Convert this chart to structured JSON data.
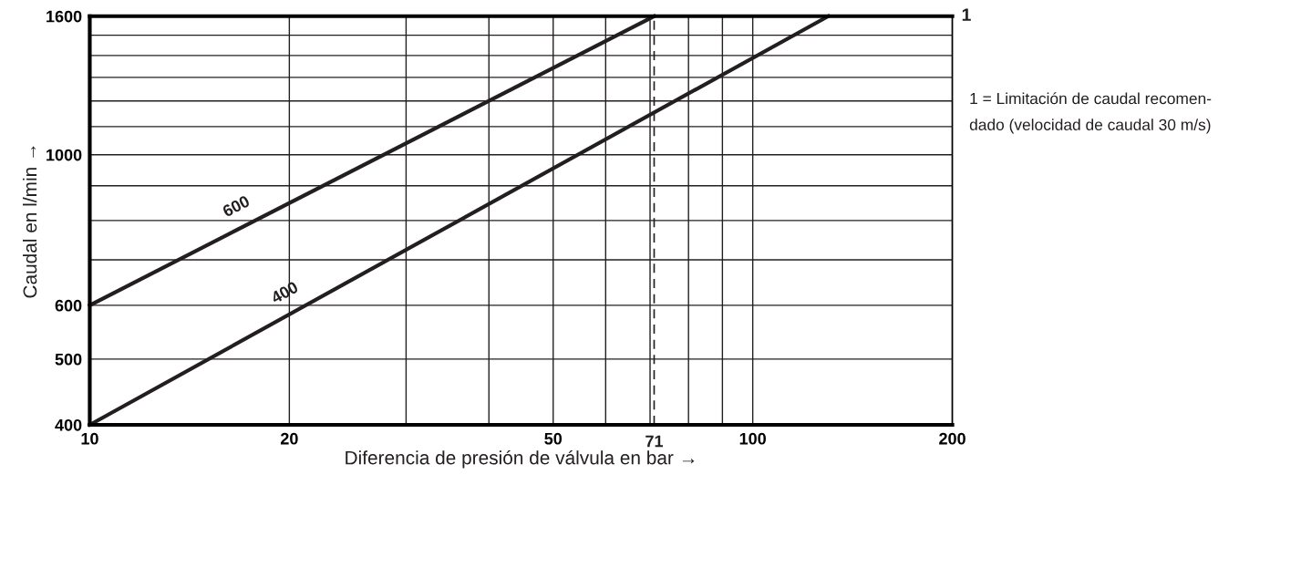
{
  "chart_data": {
    "type": "line",
    "xlabel": "Diferencia de presión de válvula en bar →",
    "ylabel": "Caudal en l/min →",
    "log": "xy",
    "grid": true,
    "marker": "none",
    "line_style": "solid",
    "xlim": [
      10,
      200
    ],
    "ylim": [
      400,
      1600
    ],
    "xticks": [
      10,
      20,
      {
        "value": 30,
        "label": null
      },
      {
        "value": 40,
        "label": null
      },
      50,
      {
        "value": 60,
        "label": null
      },
      {
        "value": 70,
        "label": null
      },
      {
        "value": 80,
        "label": null
      },
      {
        "value": 90,
        "label": null
      },
      100,
      200
    ],
    "yticks": [
      400,
      500,
      600,
      {
        "value": 700,
        "label": null
      },
      {
        "value": 800,
        "label": null
      },
      {
        "value": 900,
        "label": null
      },
      1000,
      {
        "value": 1100,
        "label": null
      },
      {
        "value": 1200,
        "label": null
      },
      {
        "value": 1300,
        "label": null
      },
      {
        "value": 1400,
        "label": null
      },
      {
        "value": 1500,
        "label": null
      },
      1600
    ],
    "series": [
      {
        "name": "600",
        "color": "#231f20",
        "x": [
          10,
          71
        ],
        "values": [
          600,
          1600
        ]
      },
      {
        "name": "400",
        "color": "#231f20",
        "x": [
          10,
          130
        ],
        "values": [
          400,
          1600
        ]
      }
    ],
    "ref_lines": [
      {
        "axis": "x",
        "value": 71,
        "label": "71",
        "line_style": "dashed",
        "color": "#231f20"
      }
    ],
    "annotations": [
      "1",
      "1 = Limitación de caudal recomen-\ndado (velocidad de caudal 30 m/s)"
    ]
  }
}
